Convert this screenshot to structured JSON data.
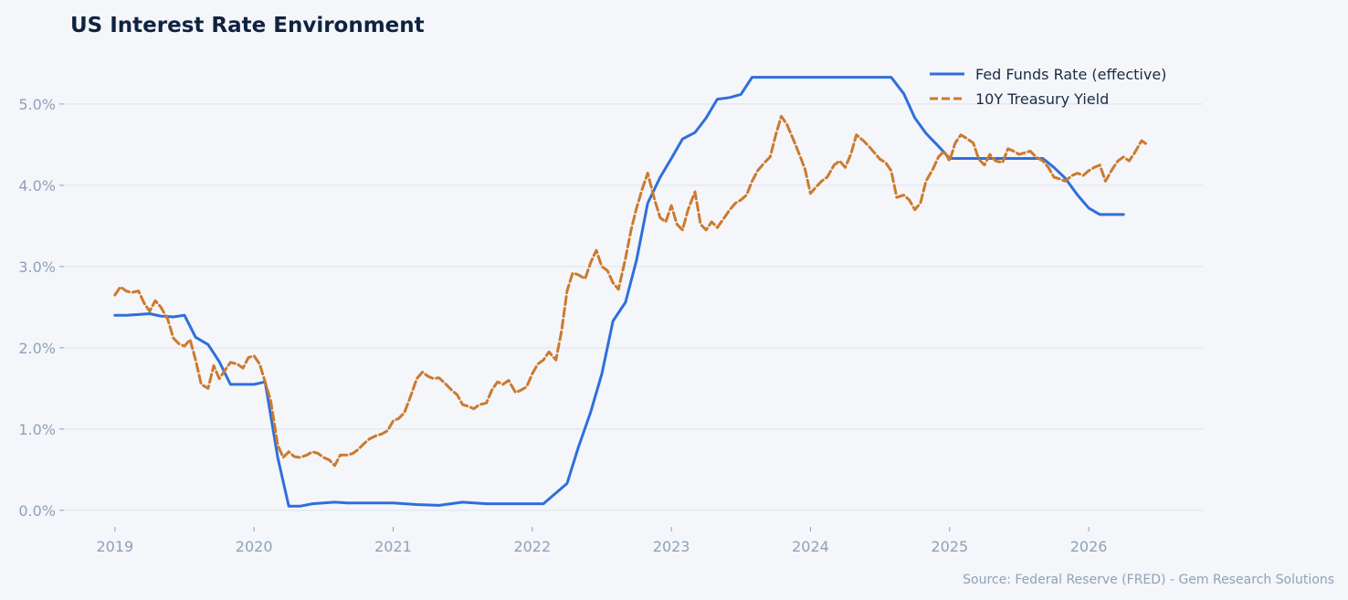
{
  "chart_data": {
    "type": "line",
    "title": "US Interest Rate Environment",
    "xlabel": "",
    "ylabel": "",
    "source": "Source: Federal Reserve (FRED) - Gem Research Solutions",
    "x_ticks": [
      "2019",
      "2020",
      "2021",
      "2022",
      "2023",
      "2024",
      "2025",
      "2026"
    ],
    "y_ticks": [
      "0.0%",
      "1.0%",
      "2.0%",
      "3.0%",
      "4.0%",
      "5.0%"
    ],
    "xlim": [
      2018.64,
      2026.82
    ],
    "ylim": [
      -0.25,
      5.55
    ],
    "grid": "horizontal",
    "legend_position": "top-right",
    "series": [
      {
        "name": "Fed Funds Rate (effective)",
        "color": "#2f6fdb",
        "style": "solid",
        "x": [
          2019.0,
          2019.08,
          2019.17,
          2019.25,
          2019.33,
          2019.42,
          2019.5,
          2019.58,
          2019.67,
          2019.75,
          2019.83,
          2019.92,
          2020.0,
          2020.08,
          2020.17,
          2020.25,
          2020.33,
          2020.42,
          2020.5,
          2020.58,
          2020.67,
          2020.75,
          2020.83,
          2020.92,
          2021.0,
          2021.17,
          2021.33,
          2021.5,
          2021.67,
          2021.83,
          2022.0,
          2022.08,
          2022.25,
          2022.33,
          2022.42,
          2022.5,
          2022.58,
          2022.67,
          2022.75,
          2022.83,
          2022.92,
          2023.0,
          2023.08,
          2023.17,
          2023.25,
          2023.33,
          2023.42,
          2023.5,
          2023.58,
          2023.67,
          2023.75,
          2023.83,
          2023.92,
          2024.0,
          2024.17,
          2024.33,
          2024.5,
          2024.58,
          2024.67,
          2024.75,
          2024.83,
          2024.92,
          2025.0,
          2025.17,
          2025.33,
          2025.5,
          2025.67,
          2025.75,
          2025.83,
          2025.92,
          2026.0,
          2026.08,
          2026.17,
          2026.25
        ],
        "y": [
          2.4,
          2.4,
          2.41,
          2.42,
          2.39,
          2.38,
          2.4,
          2.13,
          2.04,
          1.83,
          1.55,
          1.55,
          1.55,
          1.58,
          0.65,
          0.05,
          0.05,
          0.08,
          0.09,
          0.1,
          0.09,
          0.09,
          0.09,
          0.09,
          0.09,
          0.07,
          0.06,
          0.1,
          0.08,
          0.08,
          0.08,
          0.08,
          0.33,
          0.77,
          1.21,
          1.68,
          2.33,
          2.56,
          3.08,
          3.78,
          4.1,
          4.33,
          4.57,
          4.65,
          4.83,
          5.06,
          5.08,
          5.12,
          5.33,
          5.33,
          5.33,
          5.33,
          5.33,
          5.33,
          5.33,
          5.33,
          5.33,
          5.33,
          5.13,
          4.83,
          4.64,
          4.48,
          4.33,
          4.33,
          4.33,
          4.33,
          4.33,
          4.22,
          4.09,
          3.88,
          3.72,
          3.64,
          3.64,
          3.64
        ]
      },
      {
        "name": "10Y Treasury Yield",
        "color": "#cc7a2e",
        "style": "dashed",
        "x": [
          2019.0,
          2019.04,
          2019.08,
          2019.12,
          2019.17,
          2019.21,
          2019.25,
          2019.29,
          2019.33,
          2019.38,
          2019.42,
          2019.46,
          2019.5,
          2019.54,
          2019.58,
          2019.62,
          2019.67,
          2019.71,
          2019.75,
          2019.79,
          2019.83,
          2019.88,
          2019.92,
          2019.96,
          2020.0,
          2020.04,
          2020.08,
          2020.12,
          2020.17,
          2020.21,
          2020.25,
          2020.29,
          2020.33,
          2020.38,
          2020.42,
          2020.46,
          2020.5,
          2020.54,
          2020.58,
          2020.62,
          2020.67,
          2020.71,
          2020.75,
          2020.79,
          2020.83,
          2020.88,
          2020.92,
          2020.96,
          2021.0,
          2021.04,
          2021.08,
          2021.12,
          2021.17,
          2021.21,
          2021.25,
          2021.29,
          2021.33,
          2021.38,
          2021.42,
          2021.46,
          2021.5,
          2021.54,
          2021.58,
          2021.62,
          2021.67,
          2021.71,
          2021.75,
          2021.79,
          2021.83,
          2021.88,
          2021.92,
          2021.96,
          2022.0,
          2022.04,
          2022.08,
          2022.12,
          2022.17,
          2022.21,
          2022.25,
          2022.29,
          2022.33,
          2022.38,
          2022.42,
          2022.46,
          2022.5,
          2022.54,
          2022.58,
          2022.62,
          2022.67,
          2022.71,
          2022.75,
          2022.79,
          2022.83,
          2022.88,
          2022.92,
          2022.96,
          2023.0,
          2023.04,
          2023.08,
          2023.12,
          2023.17,
          2023.21,
          2023.25,
          2023.29,
          2023.33,
          2023.38,
          2023.42,
          2023.46,
          2023.5,
          2023.54,
          2023.58,
          2023.62,
          2023.67,
          2023.71,
          2023.75,
          2023.79,
          2023.83,
          2023.88,
          2023.92,
          2023.96,
          2024.0,
          2024.04,
          2024.08,
          2024.12,
          2024.17,
          2024.21,
          2024.25,
          2024.29,
          2024.33,
          2024.38,
          2024.42,
          2024.46,
          2024.5,
          2024.54,
          2024.58,
          2024.62,
          2024.67,
          2024.71,
          2024.75,
          2024.79,
          2024.83,
          2024.88,
          2024.92,
          2024.96,
          2025.0,
          2025.04,
          2025.08,
          2025.12,
          2025.17,
          2025.21,
          2025.25,
          2025.29,
          2025.33,
          2025.38,
          2025.42,
          2025.46,
          2025.5,
          2025.54,
          2025.58,
          2025.62,
          2025.67,
          2025.71,
          2025.75,
          2025.79,
          2025.83,
          2025.88,
          2025.92,
          2025.96,
          2026.0,
          2026.04,
          2026.08,
          2026.12,
          2026.17,
          2026.21,
          2026.25,
          2026.29,
          2026.33,
          2026.38,
          2026.42
        ],
        "y": [
          2.65,
          2.75,
          2.7,
          2.68,
          2.7,
          2.55,
          2.45,
          2.58,
          2.5,
          2.35,
          2.12,
          2.05,
          2.02,
          2.1,
          1.85,
          1.55,
          1.5,
          1.78,
          1.62,
          1.72,
          1.82,
          1.8,
          1.75,
          1.88,
          1.9,
          1.8,
          1.58,
          1.35,
          0.8,
          0.65,
          0.72,
          0.66,
          0.65,
          0.68,
          0.72,
          0.7,
          0.65,
          0.62,
          0.55,
          0.68,
          0.68,
          0.7,
          0.75,
          0.82,
          0.88,
          0.92,
          0.94,
          0.98,
          1.1,
          1.13,
          1.2,
          1.38,
          1.62,
          1.7,
          1.65,
          1.62,
          1.63,
          1.55,
          1.48,
          1.42,
          1.3,
          1.28,
          1.25,
          1.3,
          1.32,
          1.48,
          1.58,
          1.55,
          1.6,
          1.45,
          1.48,
          1.52,
          1.68,
          1.8,
          1.85,
          1.95,
          1.85,
          2.2,
          2.7,
          2.92,
          2.9,
          2.85,
          3.05,
          3.2,
          3.0,
          2.95,
          2.8,
          2.72,
          3.1,
          3.45,
          3.72,
          3.95,
          4.15,
          3.82,
          3.6,
          3.55,
          3.75,
          3.52,
          3.45,
          3.7,
          3.92,
          3.52,
          3.45,
          3.55,
          3.48,
          3.6,
          3.7,
          3.78,
          3.82,
          3.88,
          4.05,
          4.18,
          4.28,
          4.35,
          4.62,
          4.85,
          4.75,
          4.55,
          4.38,
          4.2,
          3.9,
          3.98,
          4.05,
          4.1,
          4.25,
          4.3,
          4.22,
          4.38,
          4.62,
          4.55,
          4.48,
          4.4,
          4.32,
          4.28,
          4.18,
          3.85,
          3.88,
          3.82,
          3.7,
          3.78,
          4.05,
          4.2,
          4.35,
          4.42,
          4.3,
          4.52,
          4.62,
          4.58,
          4.52,
          4.32,
          4.25,
          4.38,
          4.3,
          4.28,
          4.45,
          4.42,
          4.38,
          4.4,
          4.42,
          4.35,
          4.3,
          4.22,
          4.1,
          4.08,
          4.05,
          4.12,
          4.15,
          4.12,
          4.18,
          4.22,
          4.25,
          4.05,
          4.2,
          4.3,
          4.35,
          4.3,
          4.4,
          4.55,
          4.5
        ]
      }
    ]
  }
}
